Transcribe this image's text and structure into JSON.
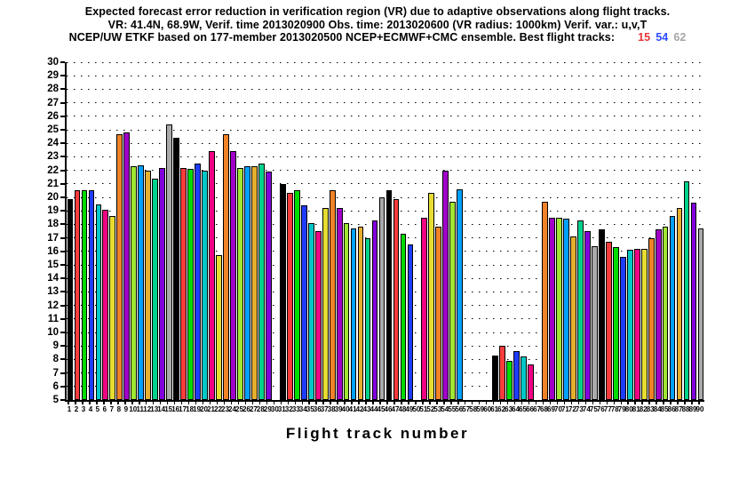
{
  "chart_data": {
    "type": "bar",
    "title_lines": [
      "Expected forecast error reduction in verification region (VR) due to adaptive observations along flight tracks.",
      "VR: 41.4N, 68.9W, Verif. time 2013020900 Obs. time: 2013020600 (VR radius: 1000km)  Verif. var.: u,v,T",
      "NCEP/UW ETKF based on 177-member 2013020500 NCEP+ECMWF+CMC ensemble. Best flight tracks:"
    ],
    "best_flight_tracks": [
      {
        "track": "15",
        "color": "#e83535"
      },
      {
        "track": "54",
        "color": "#2e4bff"
      },
      {
        "track": "62",
        "color": "#a6a6a6"
      }
    ],
    "xlabel": "Flight track number",
    "ylabel": "",
    "ylim": [
      5,
      30
    ],
    "ytick_step": 1,
    "x_range": [
      1,
      90
    ],
    "grid_horizontal": "dotted line at every integer level",
    "bar_color_rule": "palette[(track_number - 1) mod 15], GrADS default rainbow",
    "palette": [
      "#000000",
      "#fa3c3c",
      "#00dc00",
      "#1e3cff",
      "#00c8c8",
      "#f00082",
      "#e6dc32",
      "#f08228",
      "#a000c8",
      "#a0e632",
      "#00a0ff",
      "#e6af2d",
      "#00d28c",
      "#8200dc",
      "#aaaaaa"
    ],
    "values": [
      19.9,
      20.5,
      20.5,
      20.5,
      19.5,
      19.1,
      18.6,
      24.7,
      24.8,
      22.3,
      22.4,
      22.0,
      21.4,
      22.2,
      25.4,
      24.4,
      22.2,
      22.1,
      22.5,
      22.0,
      23.4,
      15.7,
      24.7,
      23.4,
      22.2,
      22.3,
      22.3,
      22.5,
      21.9,
      null,
      21.0,
      20.3,
      20.5,
      19.4,
      18.1,
      17.5,
      19.2,
      20.5,
      19.2,
      18.1,
      17.7,
      17.8,
      17.0,
      18.3,
      20.0,
      20.5,
      19.9,
      17.3,
      16.5,
      null,
      18.5,
      20.3,
      17.8,
      22.0,
      19.7,
      20.6,
      null,
      null,
      null,
      null,
      8.3,
      9.0,
      7.9,
      8.6,
      8.2,
      7.6,
      null,
      19.7,
      18.5,
      18.5,
      18.4,
      17.1,
      18.3,
      17.5,
      16.4,
      17.6,
      16.7,
      16.3,
      15.6,
      16.1,
      16.2,
      16.2,
      17.0,
      17.6,
      17.8,
      18.6,
      19.2,
      21.2,
      19.6,
      17.7
    ]
  }
}
